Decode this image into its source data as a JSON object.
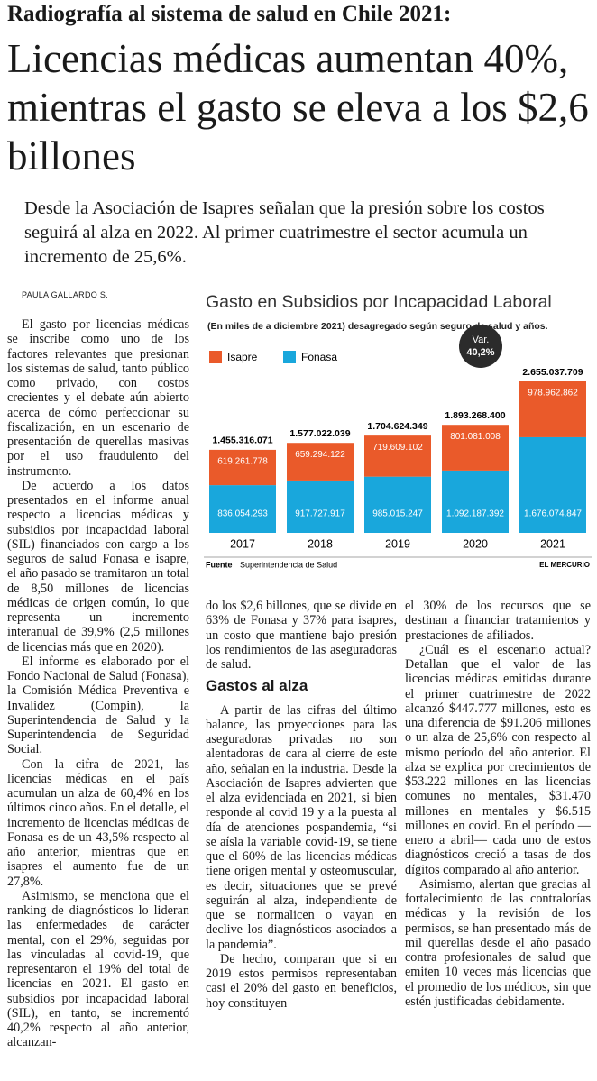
{
  "header": {
    "kicker": "Radiografía al sistema de salud en Chile 2021:",
    "title": "Licencias médicas aumentan 40%, mientras el gasto se eleva a los $2,6 billones",
    "deck": "Desde la Asociación de Isapres señalan que la presión sobre los costos seguirá al alza en 2022. Al primer cuatrimestre el sector acumula un incremento de 25,6%."
  },
  "byline": "PAULA GALLARDO S.",
  "chart_data": {
    "type": "bar",
    "stacked": true,
    "title": "Gasto en Subsidios por Incapacidad Laboral",
    "subtitle": "(En miles de a diciembre 2021) desagregado según seguro de salud y años.",
    "categories": [
      "2017",
      "2018",
      "2019",
      "2020",
      "2021"
    ],
    "series": [
      {
        "name": "Fonasa",
        "color": "#19a7dc",
        "values": [
          836054293,
          917727917,
          985015247,
          1092187392,
          1676074847
        ],
        "value_labels": [
          "836.054.293",
          "917.727.917",
          "985.015.247",
          "1.092.187.392",
          "1.676.074.847"
        ]
      },
      {
        "name": "Isapre",
        "color": "#ea5a2a",
        "values": [
          619261778,
          659294122,
          719609102,
          801081008,
          978962862
        ],
        "value_labels": [
          "619.261.778",
          "659.294.122",
          "719.609.102",
          "801.081.008",
          "978.962.862"
        ]
      }
    ],
    "totals": [
      1455316071,
      1577022039,
      1704624349,
      1893268400,
      2655037709
    ],
    "total_labels": [
      "1.455.316.071",
      "1.577.022.039",
      "1.704.624.349",
      "1.893.268.400",
      "2.655.037.709"
    ],
    "annotation": {
      "label": "Var.",
      "value": "40,2%"
    },
    "source_label": "Fuente",
    "source": "Superintendencia de Salud",
    "credit": "EL MERCURIO"
  },
  "article": {
    "columns": [
      {
        "paragraphs": [
          "El gasto por licencias médicas se inscribe como uno de los factores relevantes que presionan los sistemas de salud, tanto público como privado, con costos crecientes y el debate aún abierto acerca de cómo perfeccionar su fiscalización, en un escenario de presentación de querellas masivas por el uso fraudulento del instrumento.",
          "De acuerdo a los datos presentados en el informe anual respecto a licencias médicas y subsidios por incapacidad laboral (SIL) financiados con cargo a los seguros de salud Fonasa e isapre, el año pasado se tramitaron un total de 8,50 millones de licencias médicas de origen común, lo que representa un incremento interanual de 39,9% (2,5 millones de licencias más que en 2020).",
          "El informe es elaborado por el Fondo Nacional de Salud (Fonasa), la Comisión Médica Preventiva e Invalidez (Compin), la Superintendencia de Salud y la Superintendencia de Seguridad Social.",
          "Con la cifra de 2021, las licencias médicas en el país acumulan un alza de 60,4% en los últimos cinco años. En el detalle, el incremento de licencias médicas de Fonasa es de un 43,5% respecto al año anterior, mientras que en isapres el aumento fue de un 27,8%.",
          "Asimismo, se menciona que el ranking de diagnósticos lo lideran las enfermedades de carácter mental, con el 29%, seguidas por las vinculadas al covid-19, que representaron el 19% del total de licencias en 2021. El gasto en subsidios por incapacidad laboral (SIL), en tanto, se incrementó 40,2% respecto al año anterior, alcanzan-"
        ]
      },
      {
        "paragraphs": [
          "do los $2,6 billones, que se divide en 63% de Fonasa y 37% para isapres, un costo que mantiene bajo presión los rendimientos de las aseguradoras de salud."
        ],
        "subhead": "Gastos al alza",
        "paragraphs_after": [
          "A partir de las cifras del último balance, las proyecciones para las aseguradoras privadas no son alentadoras de cara al cierre de este año, señalan en la industria. Desde la Asociación de Isapres advierten que el alza evidenciada en 2021, si bien responde al covid 19 y a la puesta al día de atenciones pospandemia, “si se aísla la variable covid-19, se tiene que el 60% de las licencias médicas tiene origen mental y osteomuscular, es decir, situaciones que se prevé seguirán al alza, independiente de que se normalicen o vayan en declive los diagnósticos asociados a la pandemia”.",
          "De hecho, comparan que si en 2019 estos permisos representaban casi el 20% del gasto en beneficios, hoy constituyen"
        ]
      },
      {
        "paragraphs": [
          "el 30% de los recursos que se destinan a financiar tratamientos y prestaciones de afiliados.",
          "¿Cuál es el escenario actual? Detallan que el valor de las licencias médicas emitidas durante el primer cuatrimestre de 2022 alcanzó $447.777 millones, esto es una diferencia de $91.206 millones o un alza de 25,6% con respecto al mismo período del año anterior. El alza se explica por crecimientos de $53.222 millones en las licencias comunes no mentales, $31.470 millones en mentales y $6.515 millones en covid. En el período —enero a abril— cada uno de estos diagnósticos creció a tasas de dos dígitos comparado al año anterior.",
          "Asimismo, alertan que gracias al fortalecimiento de las contralorías médicas y la revisión de los permisos, se han presentado más de mil querellas desde el año pasado contra profesionales de salud que emiten 10 veces más licencias que el promedio de los médicos, sin que estén justificadas debidamente."
        ]
      }
    ]
  }
}
